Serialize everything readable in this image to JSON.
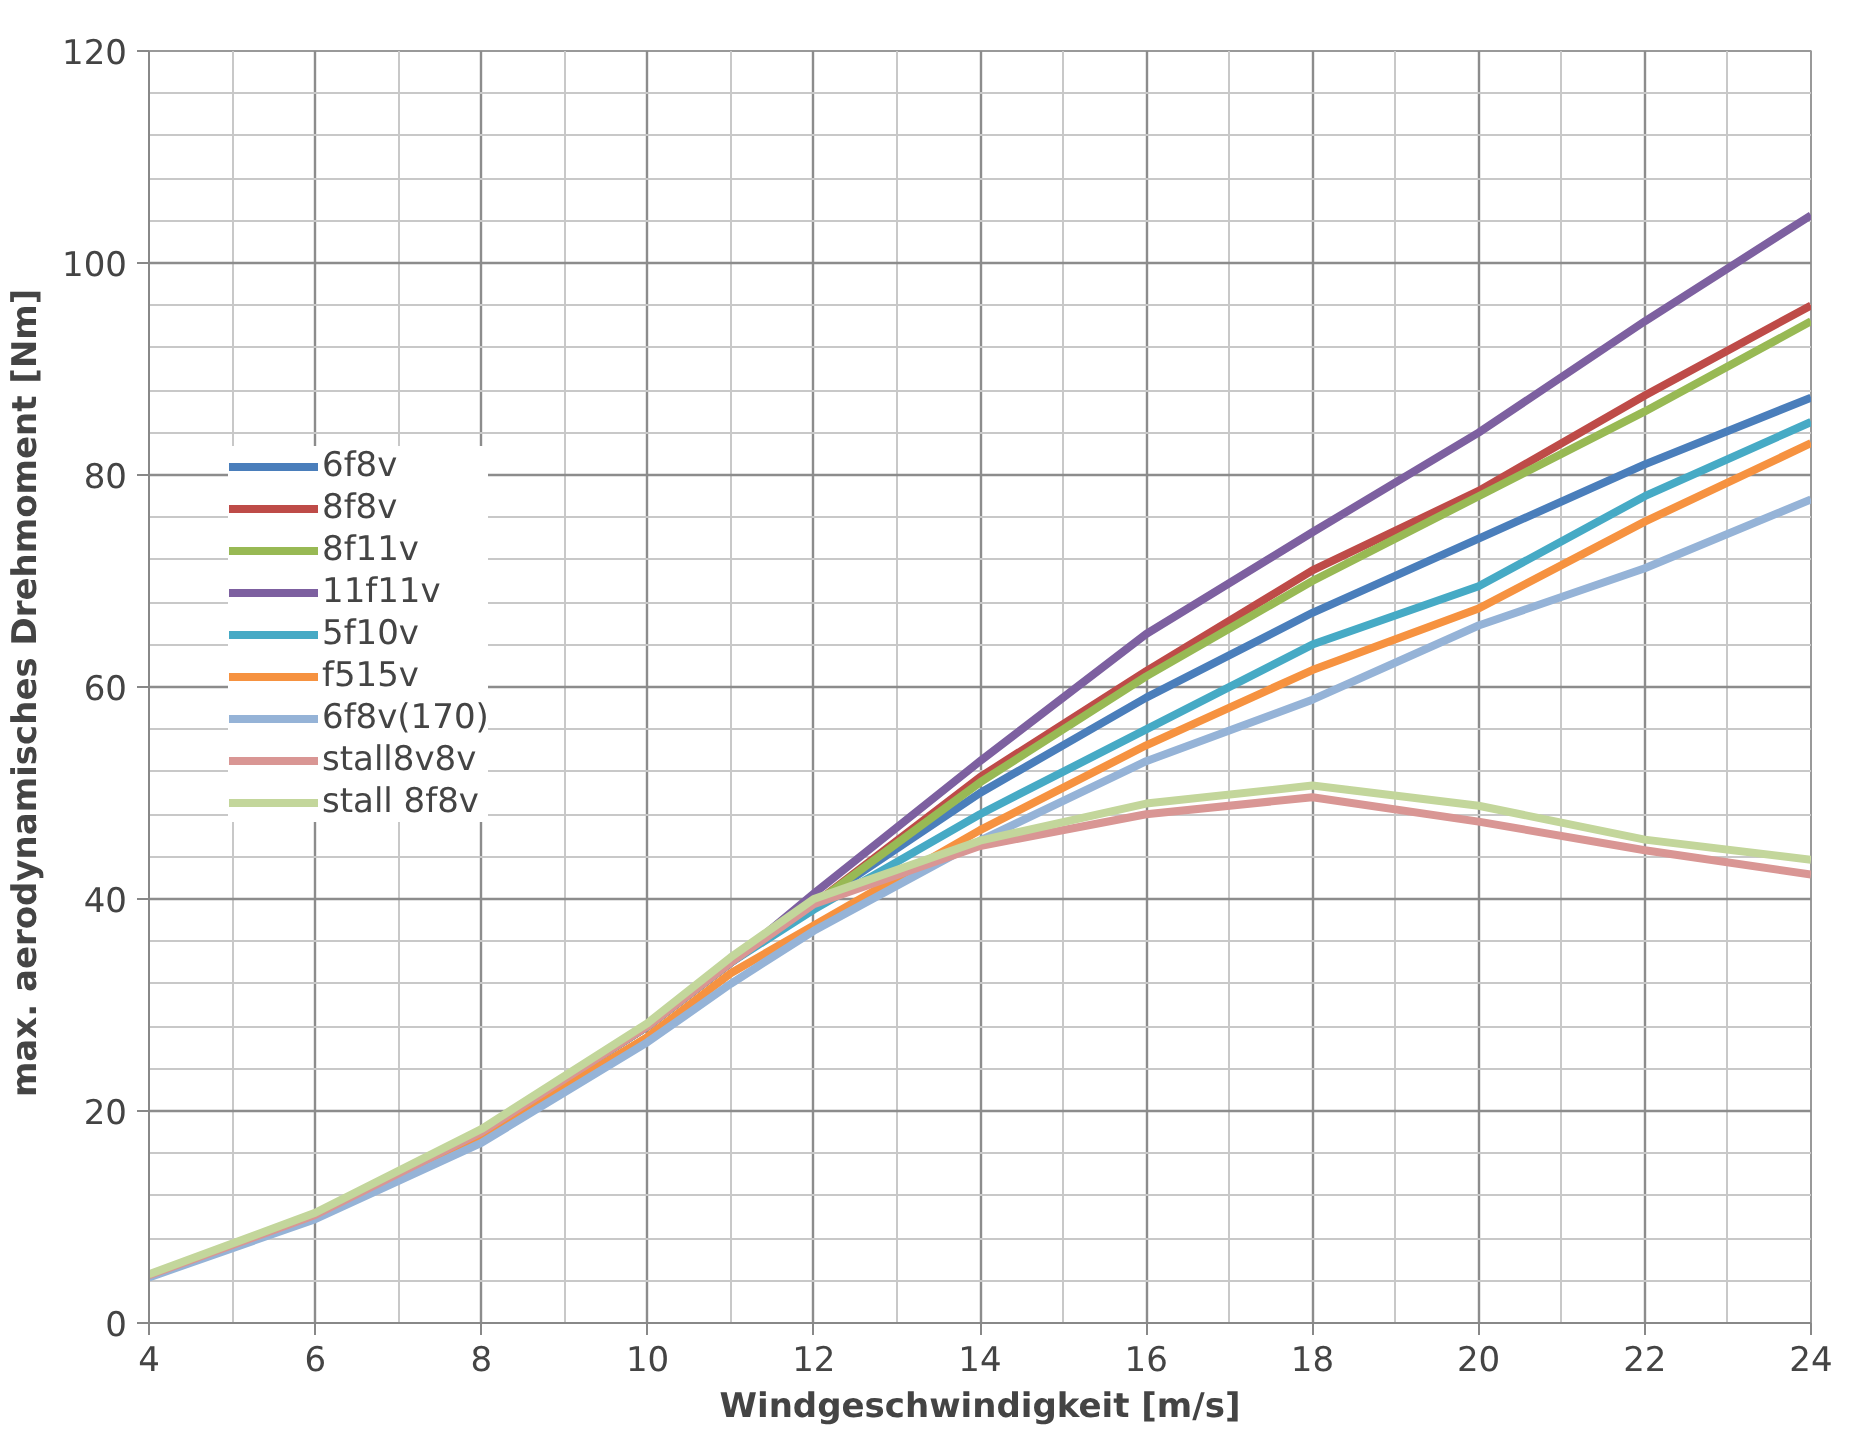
{
  "chart_data": {
    "type": "line",
    "xlabel": "Windgeschwindigkeit [m/s]",
    "ylabel": "max. aerodynamisches  Drehmoment [Nm]",
    "x": [
      4,
      6,
      8,
      10,
      11,
      12,
      14,
      16,
      18,
      20,
      22,
      24
    ],
    "xlim": [
      4,
      24
    ],
    "xticks": [
      4,
      6,
      8,
      10,
      12,
      14,
      16,
      18,
      20,
      22,
      24
    ],
    "ylim": [
      0,
      120
    ],
    "yticks": [
      0,
      20,
      40,
      60,
      80,
      100,
      120
    ],
    "grid": true,
    "legend": "top left",
    "line_style": "solid",
    "series": [
      {
        "name": "6f8v",
        "color": "#4a7ebb",
        "values": [
          4.5,
          10.2,
          18,
          28,
          34,
          39.5,
          50,
          59,
          67,
          74,
          81,
          87.3
        ]
      },
      {
        "name": "8f8v",
        "color": "#be4b48",
        "values": [
          4.5,
          10.2,
          18,
          28,
          34,
          39.5,
          51.5,
          61.5,
          71,
          78.5,
          87.5,
          96
        ]
      },
      {
        "name": "8f11v",
        "color": "#98b954",
        "values": [
          4.5,
          10.2,
          18,
          28,
          34,
          39.5,
          51,
          61,
          70,
          78,
          86,
          94.5
        ]
      },
      {
        "name": "11f11v",
        "color": "#7d60a0",
        "values": [
          4.5,
          10.2,
          18,
          28,
          34,
          40.5,
          53,
          65,
          74.6,
          84,
          94.5,
          104.5
        ]
      },
      {
        "name": "5f10v",
        "color": "#46aac5",
        "values": [
          4.5,
          10.2,
          18,
          28,
          34,
          39,
          48,
          56,
          64,
          69.5,
          78,
          85
        ]
      },
      {
        "name": "f515v",
        "color": "#f69240",
        "values": [
          4.5,
          10.2,
          17.5,
          27,
          33,
          37.5,
          46.5,
          54.5,
          61.6,
          67.4,
          75.6,
          83
        ]
      },
      {
        "name": "6f8v(170)",
        "color": "#95b3d7",
        "values": [
          4.3,
          9.8,
          17,
          26.5,
          32,
          37,
          45.5,
          53,
          58.8,
          65.8,
          71.2,
          77.7
        ]
      },
      {
        "name": "stall8v8v",
        "color": "#d99694",
        "values": [
          4.5,
          10.2,
          18,
          28,
          34,
          39.5,
          45,
          48,
          49.6,
          47.3,
          44.6,
          42.3
        ]
      },
      {
        "name": "stall 8f8v",
        "color": "#c3d69b",
        "values": [
          4.6,
          10.4,
          18.3,
          28.3,
          34.5,
          40,
          45.5,
          49,
          50.7,
          48.8,
          45.6,
          43.7
        ]
      }
    ]
  }
}
